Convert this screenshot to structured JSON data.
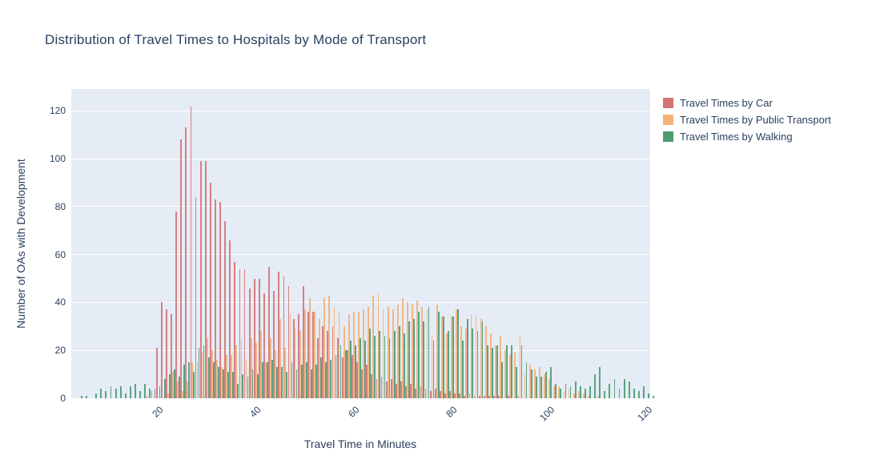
{
  "chart_data": {
    "type": "bar",
    "subtype": "grouped-histogram",
    "title": "Distribution of Travel Times to Hospitals by Mode of Transport",
    "xlabel": "Travel Time in Minutes",
    "ylabel": "Number of OAs with Development",
    "x_ticks": [
      20,
      40,
      60,
      80,
      100,
      120
    ],
    "y_ticks": [
      0,
      20,
      40,
      60,
      80,
      100,
      120
    ],
    "x_range": [
      2.2,
      120.6
    ],
    "y_range": [
      0,
      129.2
    ],
    "grid": "white-on-lightblue",
    "legend_position": "right-top-outside",
    "plot_bg_color": "#e5ecf6",
    "grid_color": "#ffffff",
    "text_color": "#2a3f5f",
    "bar_opacity": 0.75,
    "minutes": [
      4,
      5,
      6,
      7,
      8,
      9,
      10,
      11,
      12,
      13,
      14,
      15,
      16,
      17,
      18,
      19,
      20,
      21,
      22,
      23,
      24,
      25,
      26,
      27,
      28,
      29,
      30,
      31,
      32,
      33,
      34,
      35,
      36,
      37,
      38,
      39,
      40,
      41,
      42,
      43,
      44,
      45,
      46,
      47,
      48,
      49,
      50,
      51,
      52,
      53,
      54,
      55,
      56,
      57,
      58,
      59,
      60,
      61,
      62,
      63,
      64,
      65,
      66,
      67,
      68,
      69,
      70,
      71,
      72,
      73,
      74,
      75,
      76,
      77,
      78,
      79,
      80,
      81,
      82,
      83,
      84,
      85,
      86,
      87,
      88,
      89,
      90,
      91,
      92,
      93,
      94,
      95,
      96,
      97,
      98,
      99,
      100,
      101,
      102,
      103,
      104,
      105,
      106,
      107,
      108,
      109,
      110,
      111,
      112,
      113,
      114,
      115,
      116,
      117,
      118,
      119,
      120,
      121
    ],
    "series": [
      {
        "name": "Travel Times by Car",
        "color": "#CD5C5C",
        "values": [
          0,
          0,
          0,
          0,
          0,
          0,
          0,
          0,
          0,
          0,
          0,
          0,
          0,
          0,
          1,
          3,
          21,
          40,
          37,
          35,
          78,
          108,
          113,
          122,
          84,
          99,
          99,
          90,
          83,
          82,
          74,
          66,
          57,
          54,
          54,
          46,
          50,
          50,
          44,
          55,
          45,
          53,
          51,
          47,
          33,
          35,
          47,
          36,
          36,
          25,
          30,
          28,
          30,
          25,
          17,
          20,
          18,
          15,
          12,
          14,
          10,
          8,
          9,
          7,
          8,
          6,
          7,
          5,
          6,
          4,
          5,
          4,
          3,
          4,
          3,
          2,
          3,
          2,
          2,
          1,
          2,
          1,
          1,
          1,
          1,
          1,
          1,
          0,
          1,
          0,
          1,
          0,
          0,
          0,
          0,
          0,
          0,
          0,
          0,
          0,
          0,
          0,
          0,
          0,
          0,
          0,
          0,
          0,
          0,
          0,
          0,
          0,
          0,
          0,
          0,
          0,
          0,
          0
        ]
      },
      {
        "name": "Travel Times by Public Transport",
        "color": "#F4A460",
        "values": [
          0,
          0,
          0,
          0,
          0,
          0,
          0,
          0,
          0,
          0,
          0,
          0,
          0,
          0,
          0,
          0,
          0,
          0,
          2,
          11,
          7,
          3,
          7,
          15,
          15,
          19,
          25,
          20,
          16,
          13,
          18,
          18,
          22,
          24,
          16,
          25,
          23,
          28,
          15,
          25,
          20,
          33,
          21,
          35,
          29,
          28,
          37,
          42,
          36,
          33,
          42,
          43,
          38,
          36,
          30,
          35,
          36,
          36,
          37,
          38,
          43,
          44,
          37,
          38,
          37,
          39,
          42,
          40,
          39,
          41,
          38,
          37,
          26,
          39,
          34,
          27,
          34,
          37,
          30,
          29,
          35,
          34,
          33,
          30,
          27,
          22,
          26,
          20,
          18,
          19,
          26,
          10,
          14,
          12,
          13,
          10,
          8,
          5,
          5,
          3,
          4,
          2,
          3,
          2,
          1,
          0,
          1,
          0,
          0,
          0,
          0,
          0,
          0,
          0,
          0,
          0,
          0,
          0
        ]
      },
      {
        "name": "Travel Times by Walking",
        "color": "#2E8B57",
        "values": [
          1,
          1,
          0,
          2,
          4,
          3,
          5,
          4,
          5,
          2,
          5,
          6,
          3,
          6,
          4,
          4,
          5,
          8,
          10,
          12,
          9,
          14,
          15,
          11,
          21,
          22,
          17,
          15,
          13,
          12,
          11,
          11,
          6,
          10,
          9,
          12,
          10,
          15,
          15,
          16,
          13,
          13,
          11,
          15,
          12,
          14,
          15,
          12,
          14,
          17,
          15,
          16,
          18,
          22,
          20,
          24,
          22,
          25,
          24,
          29,
          26,
          28,
          26,
          25,
          28,
          30,
          27,
          32,
          33,
          36,
          32,
          38,
          24,
          36,
          34,
          28,
          34,
          37,
          24,
          33,
          29,
          28,
          32,
          22,
          21,
          22,
          15,
          22,
          22,
          13,
          22,
          15,
          12,
          9,
          9,
          11,
          13,
          6,
          4,
          6,
          5,
          7,
          5,
          4,
          5,
          10,
          13,
          3,
          6,
          8,
          4,
          8,
          7,
          4,
          3,
          5,
          2,
          1
        ]
      }
    ]
  }
}
